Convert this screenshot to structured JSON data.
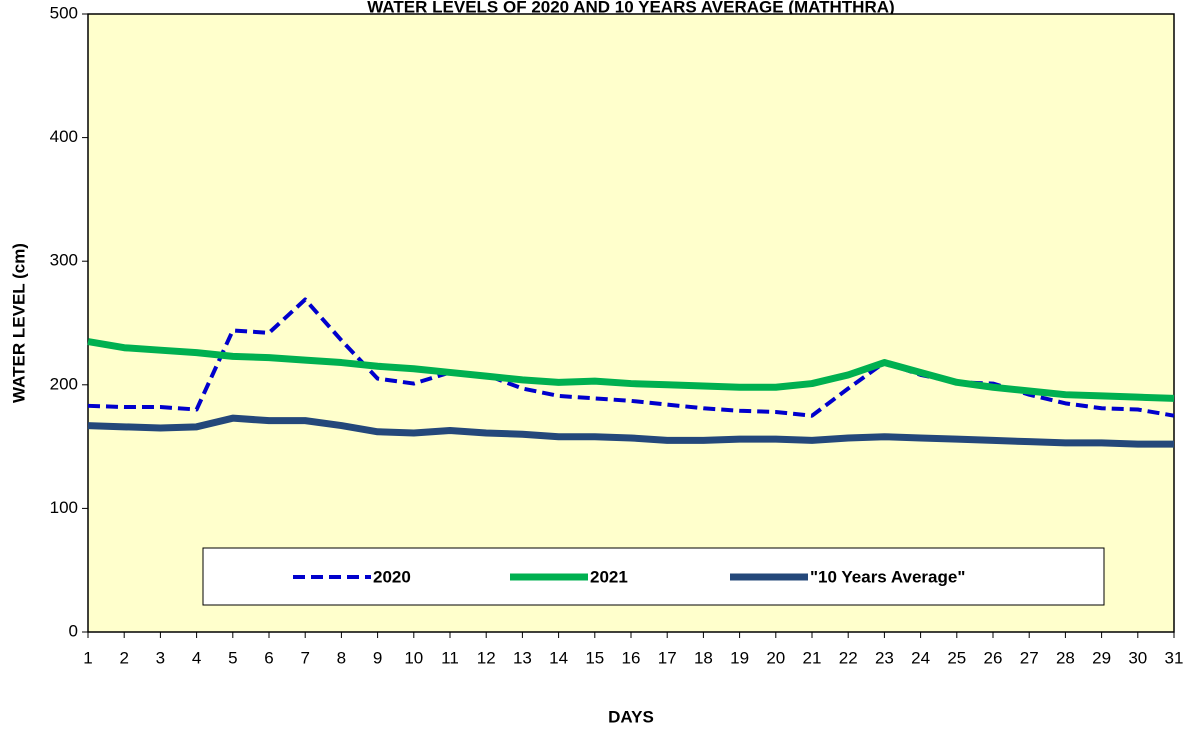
{
  "chart_data": {
    "type": "line",
    "title": "WATER LEVELS OF 2020 AND 10 YEARS AVERAGE (MATHTHRA)",
    "x_label": "DAYS",
    "y_label": "WATER LEVEL (cm)",
    "x": [
      1,
      2,
      3,
      4,
      5,
      6,
      7,
      8,
      9,
      10,
      11,
      12,
      13,
      14,
      15,
      16,
      17,
      18,
      19,
      20,
      21,
      22,
      23,
      24,
      25,
      26,
      27,
      28,
      29,
      30,
      31
    ],
    "xlim": [
      1,
      31
    ],
    "xticks": [
      1,
      2,
      3,
      4,
      5,
      6,
      7,
      8,
      9,
      10,
      11,
      12,
      13,
      14,
      15,
      16,
      17,
      18,
      19,
      20,
      21,
      22,
      23,
      24,
      25,
      26,
      27,
      28,
      29,
      30,
      31
    ],
    "ylim": [
      0,
      500
    ],
    "yticks": [
      0,
      100,
      200,
      300,
      400,
      500
    ],
    "grid": false,
    "background": "#ffffcc",
    "series": [
      {
        "name": "2020",
        "color": "#0000cc",
        "dash": true,
        "values": [
          183,
          182,
          182,
          180,
          244,
          242,
          269,
          236,
          205,
          201,
          210,
          208,
          197,
          191,
          189,
          187,
          184,
          181,
          179,
          178,
          175,
          197,
          218,
          208,
          202,
          201,
          192,
          185,
          181,
          180,
          175
        ]
      },
      {
        "name": "2021",
        "color": "#00b050",
        "dash": false,
        "values": [
          235,
          230,
          228,
          226,
          223,
          222,
          220,
          218,
          215,
          213,
          210,
          207,
          204,
          202,
          203,
          201,
          200,
          199,
          198,
          198,
          201,
          208,
          218,
          210,
          202,
          198,
          195,
          192,
          191,
          190,
          189
        ]
      },
      {
        "name": "\"10 Years Average\"",
        "color": "#24487a",
        "dash": false,
        "values": [
          167,
          166,
          165,
          166,
          173,
          171,
          171,
          167,
          162,
          161,
          163,
          161,
          160,
          158,
          158,
          157,
          155,
          155,
          156,
          156,
          155,
          157,
          158,
          157,
          156,
          155,
          154,
          153,
          153,
          152,
          152
        ]
      }
    ]
  }
}
